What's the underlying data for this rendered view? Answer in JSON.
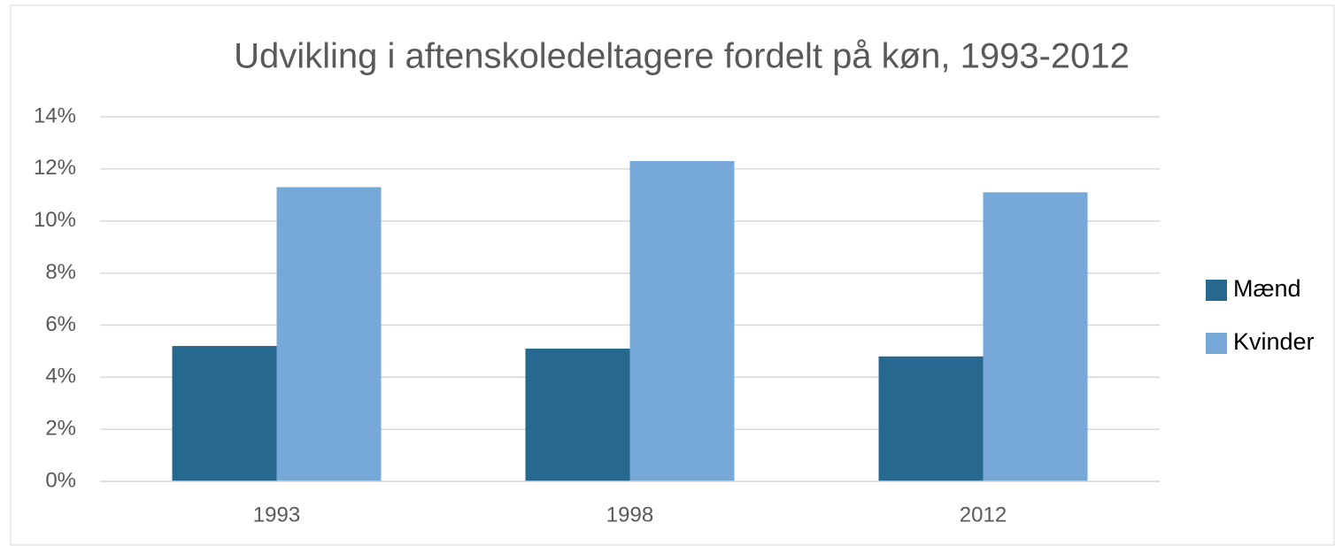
{
  "chart_data": {
    "type": "bar",
    "title": "Udvikling i aftenskoledeltagere fordelt på køn, 1993-2012",
    "categories": [
      "1993",
      "1998",
      "2012"
    ],
    "series": [
      {
        "name": "Mænd",
        "color": "#276891",
        "values": [
          5.2,
          5.1,
          4.8
        ]
      },
      {
        "name": "Kvinder",
        "color": "#76a9d8",
        "values": [
          11.3,
          12.3,
          11.1
        ]
      }
    ],
    "ylim": [
      0,
      14
    ],
    "yticks": [
      {
        "value": 0,
        "label": "0%"
      },
      {
        "value": 2,
        "label": "2%"
      },
      {
        "value": 4,
        "label": "4%"
      },
      {
        "value": 6,
        "label": "6%"
      },
      {
        "value": 8,
        "label": "8%"
      },
      {
        "value": 10,
        "label": "10%"
      },
      {
        "value": 12,
        "label": "12%"
      },
      {
        "value": 14,
        "label": "14%"
      }
    ],
    "grid": true,
    "legend": "right"
  }
}
